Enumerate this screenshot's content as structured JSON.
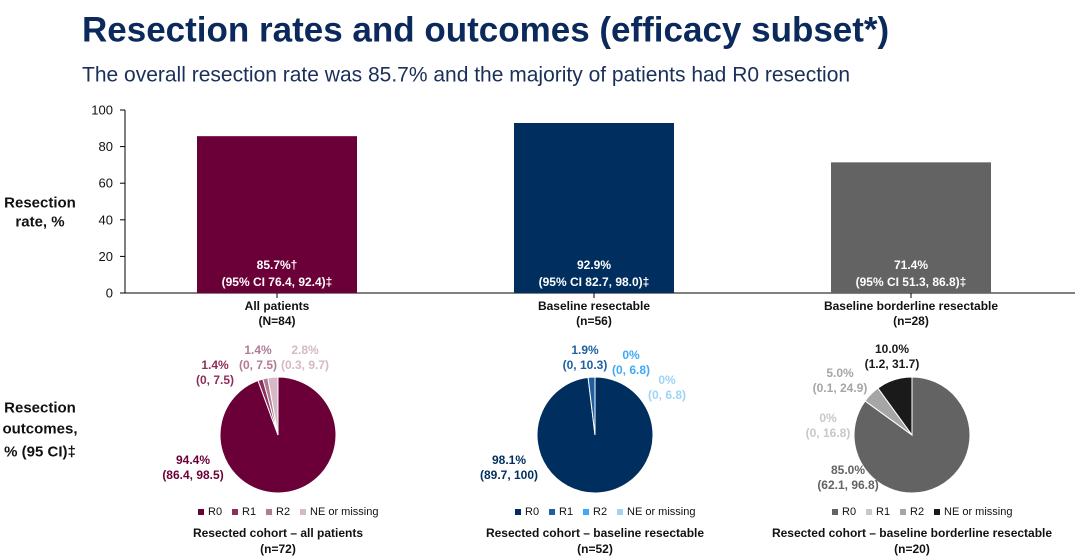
{
  "title": "Resection rates and outcomes (efficacy subset*)",
  "subtitle": "The overall resection rate was 85.7% and the majority of patients had R0 resection",
  "outcomes_label": [
    "Resection",
    "outcomes,",
    "% (95 CI)‡"
  ],
  "chart_data": [
    {
      "type": "bar",
      "y_label": [
        "Resection",
        "rate, %"
      ],
      "categories": [
        "All patients",
        "Baseline resectable",
        "Baseline borderline resectable"
      ],
      "category_notes": [
        "(N=84)",
        "(n=56)",
        "(n=28)"
      ],
      "values": [
        85.7,
        92.9,
        71.4
      ],
      "value_labels": [
        "85.7%†",
        "92.9%",
        "71.4%"
      ],
      "ci_labels": [
        "(95% CI 76.4, 92.4)‡",
        "(95% CI 82.7, 98.0)‡",
        "(95% CI 51.3, 86.8)‡"
      ],
      "colors": [
        "#6b0038",
        "#002f5f",
        "#636363"
      ],
      "ylim": [
        0,
        100
      ],
      "yticks": [
        0,
        20,
        40,
        60,
        80,
        100
      ]
    },
    {
      "type": "pie",
      "title": "Resected cohort – all patients",
      "note": "(n=72)",
      "categories": [
        "R0",
        "R1",
        "R2",
        "NE or missing"
      ],
      "values": [
        94.4,
        1.4,
        1.4,
        2.8
      ],
      "value_labels": [
        "94.4%",
        "1.4%",
        "1.4%",
        "2.8%"
      ],
      "ci_labels": [
        "(86.4, 98.5)",
        "(0, 7.5)",
        "(0, 7.5)",
        "(0.3, 9.7)"
      ],
      "colors": [
        "#6b0038",
        "#8c2f5a",
        "#b07c94",
        "#d7b8c6"
      ]
    },
    {
      "type": "pie",
      "title": "Resected cohort – baseline resectable",
      "note": "(n=52)",
      "categories": [
        "R0",
        "R1",
        "R2",
        "NE or missing"
      ],
      "values": [
        98.1,
        1.9,
        0,
        0
      ],
      "value_labels": [
        "98.1%",
        "1.9%",
        "0%",
        "0%"
      ],
      "ci_labels": [
        "(89.7, 100)",
        "(0, 10.3)",
        "(0, 6.8)",
        "(0, 6.8)"
      ],
      "colors": [
        "#002f5f",
        "#1f5fa0",
        "#3fa9f5",
        "#9fd4f5"
      ]
    },
    {
      "type": "pie",
      "title": "Resected cohort – baseline borderline resectable",
      "note": "(n=20)",
      "categories": [
        "R0",
        "R1",
        "R2",
        "NE or missing"
      ],
      "values": [
        85.0,
        0,
        5.0,
        10.0
      ],
      "value_labels": [
        "85.0%",
        "0%",
        "5.0%",
        "10.0%"
      ],
      "ci_labels": [
        "(62.1, 96.8)",
        "(0, 16.8)",
        "(0.1, 24.9)",
        "(1.2, 31.7)"
      ],
      "colors": [
        "#636363",
        "#c8c8c8",
        "#a6a6a6",
        "#1a1a1a"
      ]
    }
  ]
}
